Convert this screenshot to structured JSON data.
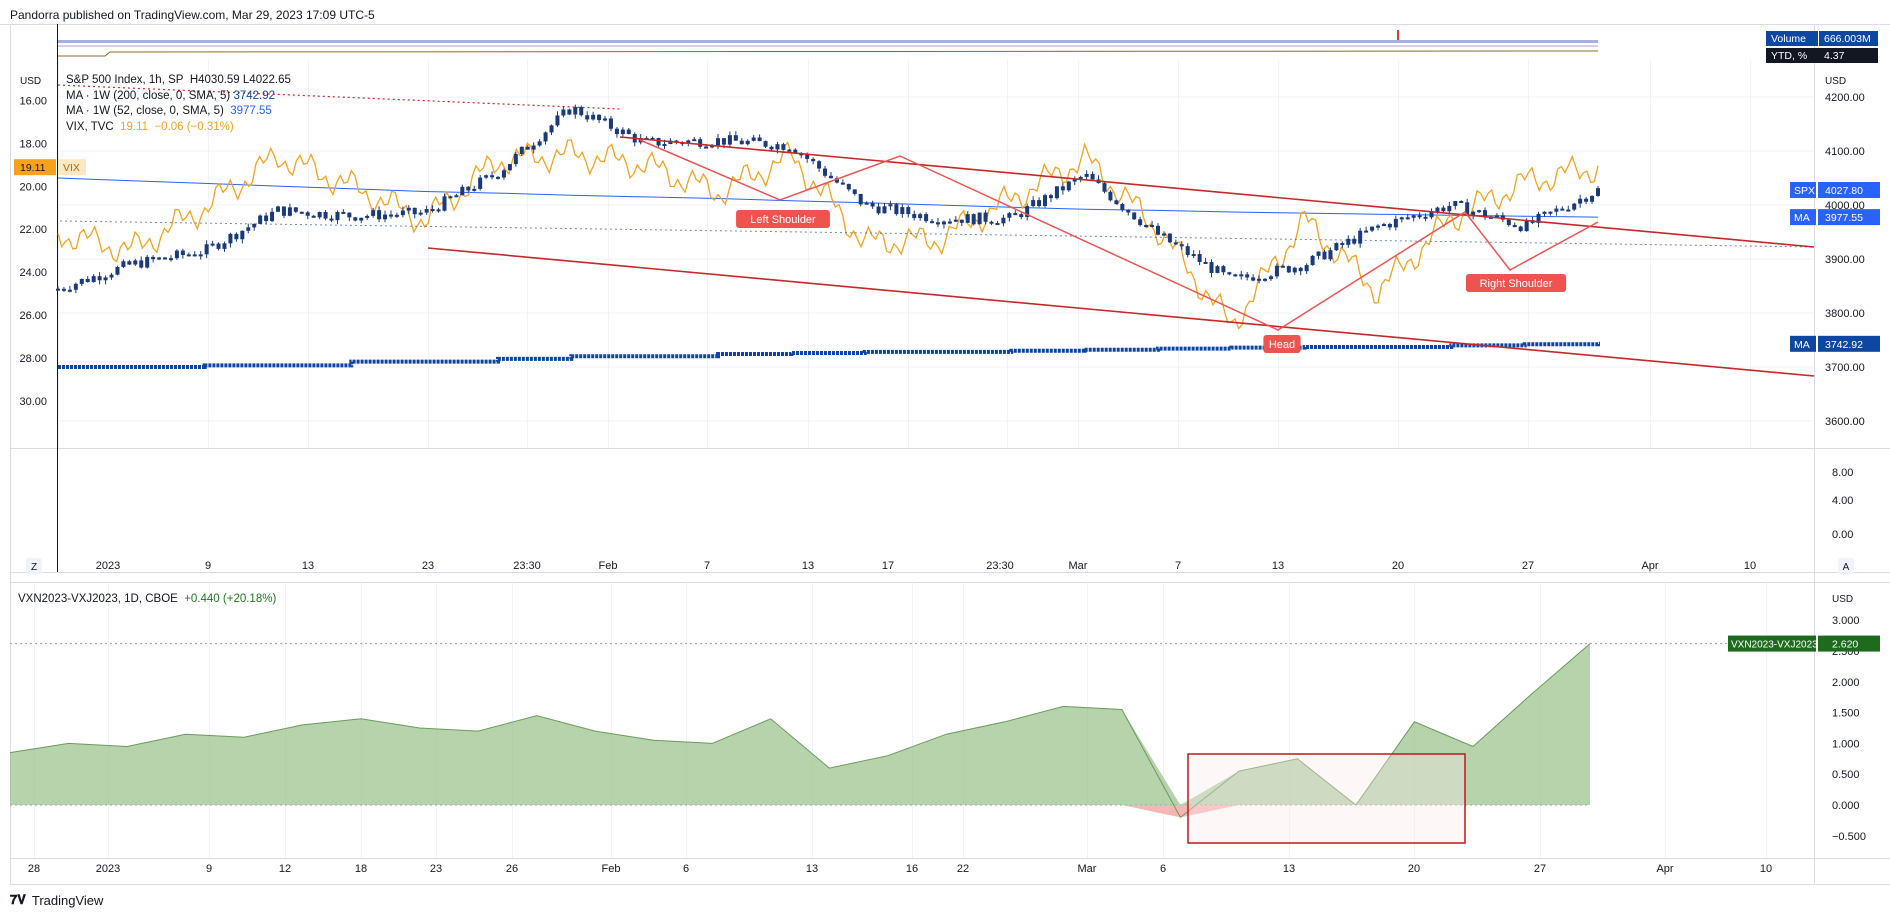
{
  "header": {
    "publisher": "Pandorra published on TradingView.com, Mar 29, 2023 17:09 UTC-5"
  },
  "footer": {
    "brand": "TradingView"
  },
  "top_badges": {
    "volume_label": "Volume",
    "volume_value": "666.003M",
    "ytd_label": "YTD, %",
    "ytd_value": "4.37"
  },
  "legend": {
    "line1": {
      "name": "S&P 500 Index, 1h, SP",
      "values": "H4030.59  L4022.65"
    },
    "line2": {
      "name": "MA · 1W (200, close, 0, SMA, 5)",
      "value": "3742.92"
    },
    "line3": {
      "name": "MA · 1W (52, close, 0, SMA, 5)",
      "value": "3977.55"
    },
    "line4": {
      "name": "VIX, TVC",
      "value": "19.11",
      "change": "−0.06 (−0.31%)"
    }
  },
  "left_axis": {
    "unit": "USD",
    "ticks": [
      "16.00",
      "18.00",
      "20.00",
      "22.00",
      "24.00",
      "26.00",
      "28.00",
      "30.00"
    ],
    "vix_badge_value": "19.11",
    "vix_badge_label": "VIX"
  },
  "right_axis": {
    "unit": "USD",
    "ticks": [
      "4200.00",
      "4100.00",
      "4000.00",
      "3900.00",
      "3800.00",
      "3700.00",
      "3600.00"
    ],
    "lower_ticks": [
      "8.00",
      "4.00",
      "0.00"
    ],
    "badges": [
      {
        "label": "SPX",
        "value": "4027.80",
        "color": "#2962ff"
      },
      {
        "label": "MA",
        "value": "3977.55",
        "color": "#2962ff"
      },
      {
        "label": "MA",
        "value": "3742.92",
        "color": "#0d47a1"
      }
    ]
  },
  "x_axis_top": [
    "2023",
    "9",
    "13",
    "23",
    "23:30",
    "Feb",
    "7",
    "13",
    "17",
    "23:30",
    "Mar",
    "7",
    "13",
    "20",
    "27",
    "Apr",
    "10"
  ],
  "x_axis_bottom": [
    "28",
    "2023",
    "9",
    "12",
    "18",
    "23",
    "26",
    "Feb",
    "6",
    "13",
    "16",
    "22",
    "Mar",
    "6",
    "13",
    "20",
    "27",
    "Apr",
    "10"
  ],
  "axis_buttons": {
    "left": "Z",
    "right": "A"
  },
  "annotations": {
    "left_shoulder": "Left Shoulder",
    "head": "Head",
    "right_shoulder": "Right Shoulder"
  },
  "bottom_pane": {
    "legend_name": "VXN2023-VXJ2023, 1D, CBOE",
    "legend_change": "+0.440 (+20.18%)",
    "unit": "USD",
    "ticks": [
      "3.000",
      "2.500",
      "2.000",
      "1.500",
      "1.000",
      "0.500",
      "0.000",
      "−0.500"
    ],
    "badge_label": "VXN2023-VXJ2023",
    "badge_value": "2.620",
    "badge_color": "#1e6b1e"
  },
  "colors": {
    "spx": "#1a3a7a",
    "vix": "#f7a21b",
    "ma52": "#2962ff",
    "ma200": "#0d47a1",
    "channel": "#c62828",
    "hs": "#ef5350",
    "area": "#8fbc7f"
  },
  "chart_data": [
    {
      "type": "line",
      "title": "S&P 500 Index, 1h, SP",
      "x": [
        "Jan 3",
        "Jan 6",
        "Jan 9",
        "Jan 13",
        "Jan 18",
        "Jan 23",
        "Jan 27",
        "Feb 2",
        "Feb 7",
        "Feb 13",
        "Feb 16",
        "Feb 21",
        "Feb 24",
        "Mar 1",
        "Mar 6",
        "Mar 9",
        "Mar 13",
        "Mar 16",
        "Mar 20",
        "Mar 23",
        "Mar 27",
        "Mar 29"
      ],
      "series": [
        {
          "name": "S&P 500 Index, 1h, SP",
          "values": [
            3845,
            3890,
            3915,
            3990,
            3980,
            3985,
            4060,
            4180,
            4115,
            4120,
            4110,
            4000,
            3975,
            3975,
            4055,
            3945,
            3860,
            3890,
            3960,
            4000,
            3960,
            4027.8
          ]
        },
        {
          "name": "MA · 1W (52, close, 0, SMA, 5)",
          "values": [
            4050,
            4045,
            4040,
            4035,
            4030,
            4025,
            4022,
            4018,
            4015,
            4012,
            4008,
            4004,
            4000,
            3996,
            3992,
            3990,
            3987,
            3985,
            3983,
            3981,
            3979,
            3977.55
          ]
        },
        {
          "name": "MA · 1W (200, close, 0, SMA, 5)",
          "values": [
            3700,
            3700,
            3703,
            3703,
            3710,
            3710,
            3715,
            3720,
            3720,
            3724,
            3726,
            3728,
            3728,
            3730,
            3732,
            3734,
            3736,
            3737,
            3737,
            3740,
            3742,
            3742.92
          ]
        },
        {
          "name": "VIX, TVC",
          "values": [
            22.2,
            23.0,
            21.0,
            18.6,
            20.0,
            21.6,
            18.8,
            18.5,
            19.0,
            20.3,
            18.6,
            22.6,
            22.5,
            20.6,
            18.7,
            22.0,
            26.5,
            21.6,
            24.9,
            21.5,
            19.8,
            19.11
          ]
        }
      ],
      "ylim": [
        3550,
        4250
      ],
      "vix_ylim": [
        30.8,
        15.0
      ]
    },
    {
      "type": "area",
      "title": "VXN2023-VXJ2023, 1D, CBOE",
      "x": [
        "Dec 28",
        "Jan 3",
        "Jan 5",
        "Jan 9",
        "Jan 12",
        "Jan 17",
        "Jan 20",
        "Jan 25",
        "Jan 30",
        "Feb 2",
        "Feb 7",
        "Feb 10",
        "Feb 14",
        "Feb 17",
        "Feb 22",
        "Feb 24",
        "Mar 1",
        "Mar 3",
        "Mar 6",
        "Mar 8",
        "Mar 13",
        "Mar 15",
        "Mar 17",
        "Mar 20",
        "Mar 22",
        "Mar 24",
        "Mar 27",
        "Mar 29"
      ],
      "series": [
        {
          "name": "VXN2023-VXJ2023, 1D, CBOE",
          "values": [
            0.85,
            1.0,
            0.95,
            1.15,
            1.1,
            1.3,
            1.4,
            1.25,
            1.2,
            1.45,
            1.2,
            1.05,
            1.0,
            1.4,
            0.6,
            0.8,
            1.15,
            1.35,
            1.6,
            1.55,
            -0.2,
            0.55,
            0.75,
            0.0,
            1.35,
            0.95,
            1.8,
            2.62
          ]
        }
      ],
      "ylim": [
        -0.6,
        3.1
      ]
    }
  ]
}
